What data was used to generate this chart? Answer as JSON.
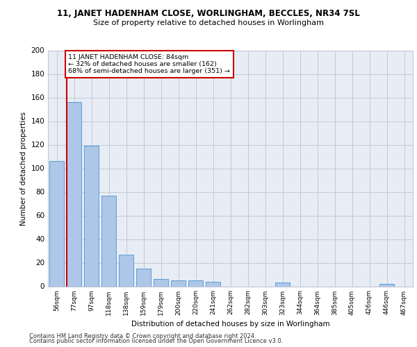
{
  "title_line1": "11, JANET HADENHAM CLOSE, WORLINGHAM, BECCLES, NR34 7SL",
  "title_line2": "Size of property relative to detached houses in Worlingham",
  "xlabel": "Distribution of detached houses by size in Worlingham",
  "ylabel": "Number of detached properties",
  "categories": [
    "56sqm",
    "77sqm",
    "97sqm",
    "118sqm",
    "138sqm",
    "159sqm",
    "179sqm",
    "200sqm",
    "220sqm",
    "241sqm",
    "262sqm",
    "282sqm",
    "303sqm",
    "323sqm",
    "344sqm",
    "364sqm",
    "385sqm",
    "405sqm",
    "426sqm",
    "446sqm",
    "467sqm"
  ],
  "values": [
    106,
    156,
    119,
    77,
    27,
    15,
    6,
    5,
    5,
    4,
    0,
    0,
    0,
    3,
    0,
    0,
    0,
    0,
    0,
    2,
    0
  ],
  "bar_color": "#aec6e8",
  "bar_edge_color": "#5a9fd4",
  "red_line_x": 0.575,
  "annotation_text": "11 JANET HADENHAM CLOSE: 84sqm\n← 32% of detached houses are smaller (162)\n68% of semi-detached houses are larger (351) →",
  "annotation_box_color": "#ffffff",
  "annotation_box_edge": "#cc0000",
  "red_line_color": "#cc0000",
  "ylim": [
    0,
    200
  ],
  "yticks": [
    0,
    20,
    40,
    60,
    80,
    100,
    120,
    140,
    160,
    180,
    200
  ],
  "grid_color": "#c0c8d8",
  "bg_color": "#e8edf5",
  "footer1": "Contains HM Land Registry data © Crown copyright and database right 2024.",
  "footer2": "Contains public sector information licensed under the Open Government Licence v3.0."
}
